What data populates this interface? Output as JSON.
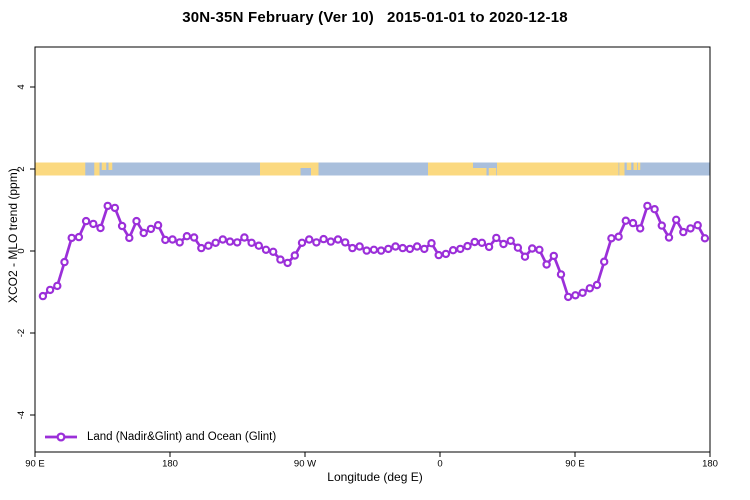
{
  "title": "30N-35N February (Ver 10)   2015-01-01 to 2020-12-18",
  "axes": {
    "x_label": "Longitude (deg E)",
    "y_label": "XCO2 - MLO trend (ppm)"
  },
  "legend": {
    "label": "Land (Nadir&Glint) and Ocean (Glint)",
    "marker": "open-circle-on-line"
  },
  "colors": {
    "series": "#9B2FD9",
    "marker_fill": "#FFFFFF",
    "land": "#FBD980",
    "ocean": "#A9BFDC",
    "axis": "#000000",
    "background": "#FFFFFF"
  },
  "chart_data": {
    "type": "line",
    "title": "30N-35N February (Ver 10)   2015-01-01 to 2020-12-18",
    "xlabel": "Longitude (deg E)",
    "ylabel": "XCO2 - MLO trend (ppm)",
    "xlim": [
      90,
      540
    ],
    "ylim": [
      -5,
      5
    ],
    "grid": false,
    "legend_position": "bottom-left",
    "x_ticks": [
      {
        "lon": 90,
        "label": "90 E"
      },
      {
        "lon": 180,
        "label": "180"
      },
      {
        "lon": 270,
        "label": "90 W"
      },
      {
        "lon": 360,
        "label": "0"
      },
      {
        "lon": 450,
        "label": "90 E"
      },
      {
        "lon": 540,
        "label": "180"
      }
    ],
    "y_ticks": [
      {
        "value": 4,
        "label": "4"
      },
      {
        "value": 2,
        "label": "2"
      },
      {
        "value": 0,
        "label": "0"
      },
      {
        "value": -2,
        "label": "-2"
      },
      {
        "value": -4,
        "label": "-4"
      }
    ],
    "series": [
      {
        "name": "Land (Nadir&Glint) and Ocean (Glint)",
        "lon_start": 95.3,
        "lon_step": 4.797,
        "values": [
          -1.1,
          -0.95,
          -0.85,
          -0.27,
          0.32,
          0.34,
          0.73,
          0.66,
          0.56,
          1.1,
          1.05,
          0.61,
          0.32,
          0.73,
          0.44,
          0.54,
          0.63,
          0.27,
          0.28,
          0.21,
          0.36,
          0.33,
          0.07,
          0.13,
          0.2,
          0.28,
          0.23,
          0.21,
          0.33,
          0.2,
          0.13,
          0.03,
          -0.02,
          -0.21,
          -0.29,
          -0.11,
          0.2,
          0.28,
          0.21,
          0.29,
          0.23,
          0.28,
          0.21,
          0.07,
          0.11,
          0.01,
          0.03,
          0.01,
          0.05,
          0.11,
          0.07,
          0.05,
          0.11,
          0.05,
          0.19,
          -0.1,
          -0.07,
          0.02,
          0.05,
          0.12,
          0.22,
          0.2,
          0.1,
          0.32,
          0.17,
          0.25,
          0.08,
          -0.14,
          0.06,
          0.03,
          -0.33,
          -0.12,
          -0.57,
          -1.12,
          -1.08,
          -1.02,
          -0.91,
          -0.83,
          -0.26,
          0.31,
          0.35,
          0.74,
          0.68,
          0.55,
          1.1,
          1.02,
          0.62,
          0.33,
          0.76,
          0.46,
          0.55,
          0.63,
          0.31
        ]
      }
    ],
    "surface_strip": {
      "description": "land(yellow)/ocean(blue) band drawn at y = 2",
      "value": 2.0,
      "ocean_range": [
        90,
        540
      ],
      "land_segments": [
        {
          "from": 90,
          "to": 123.5,
          "part": "full"
        },
        {
          "from": 129.5,
          "to": 133,
          "part": "full"
        },
        {
          "from": 134.5,
          "to": 137.5,
          "part": "top"
        },
        {
          "from": 139,
          "to": 141.5,
          "part": "top"
        },
        {
          "from": 240,
          "to": 279,
          "part": "full"
        },
        {
          "from": 352,
          "to": 382,
          "part": "full"
        },
        {
          "from": 382,
          "to": 391,
          "part": "bottom"
        },
        {
          "from": 392.5,
          "to": 397.5,
          "part": "bottom"
        },
        {
          "from": 398,
          "to": 479,
          "part": "full"
        },
        {
          "from": 479.5,
          "to": 483,
          "part": "full"
        },
        {
          "from": 484.5,
          "to": 487.5,
          "part": "top"
        },
        {
          "from": 489,
          "to": 491.5,
          "part": "top"
        },
        {
          "from": 492,
          "to": 493.5,
          "part": "top"
        }
      ],
      "water_segments": [
        {
          "from": 267,
          "to": 274,
          "part": "bottom"
        }
      ]
    }
  }
}
